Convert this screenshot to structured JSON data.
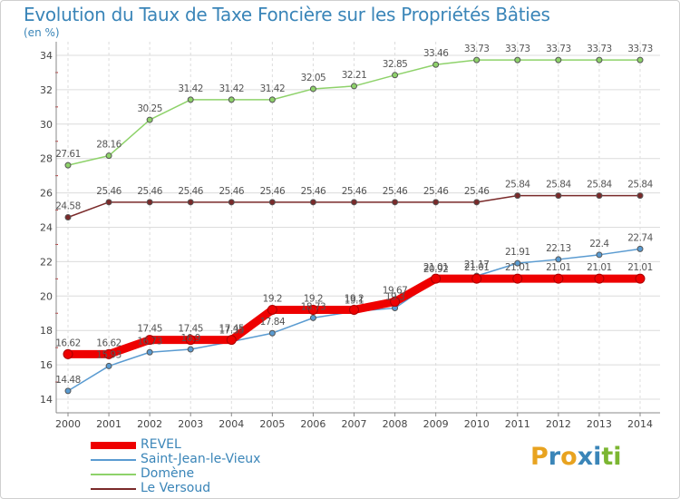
{
  "title": "Evolution du Taux de Taxe Foncière sur les Propriétés Bâties",
  "subtitle": "(en %)",
  "logo": {
    "text": "Proxiti",
    "letters": [
      "P",
      "r",
      "o",
      "x",
      "i",
      "t",
      "i"
    ],
    "colors": [
      "#e8a320",
      "#3a85b8",
      "#e8a320",
      "#3a85b8",
      "#3a85b8",
      "#7cb632",
      "#7cb632"
    ]
  },
  "chart_data": {
    "type": "line",
    "x": [
      "2000",
      "2001",
      "2002",
      "2003",
      "2004",
      "2005",
      "2006",
      "2007",
      "2008",
      "2009",
      "2010",
      "2011",
      "2012",
      "2013",
      "2014"
    ],
    "ylim": [
      14,
      34
    ],
    "yticks": [
      14,
      16,
      18,
      20,
      22,
      24,
      26,
      28,
      30,
      32,
      34
    ],
    "grid": true,
    "legend_position": "bottom-left",
    "series": [
      {
        "name": "REVEL",
        "color": "#ee0000",
        "values": [
          16.62,
          16.62,
          17.45,
          17.45,
          17.45,
          19.2,
          19.2,
          19.2,
          19.67,
          21.01,
          21.01,
          21.01,
          21.01,
          21.01,
          21.01
        ],
        "labels": [
          "16.62",
          "16.62",
          "17.45",
          "17.45",
          "17.45",
          "19.2",
          "19.2",
          "19.2",
          "19.67",
          "21.01",
          "21.01",
          "21.01",
          "21.01",
          "21.01",
          "21.01"
        ]
      },
      {
        "name": "Saint-Jean-le-Vieux",
        "color": "#5a9bd1",
        "values": [
          14.48,
          15.93,
          16.73,
          16.9,
          17.35,
          17.84,
          18.73,
          19.1,
          19.3,
          20.92,
          21.17,
          21.91,
          22.13,
          22.4,
          22.74
        ],
        "labels": [
          "14.48",
          "15.93",
          "16.73",
          "16.9",
          "17.35",
          "17.84",
          "18.73",
          "19.1",
          "19.3",
          "20.92",
          "21.17",
          "21.91",
          "22.13",
          "22.4",
          "22.74"
        ]
      },
      {
        "name": "Domène",
        "color": "#8ed26a",
        "values": [
          27.61,
          28.16,
          30.25,
          31.42,
          31.42,
          31.42,
          32.05,
          32.21,
          32.85,
          33.46,
          33.73,
          33.73,
          33.73,
          33.73,
          33.73
        ],
        "labels": [
          "27.61",
          "28.16",
          "30.25",
          "31.42",
          "31.42",
          "31.42",
          "32.05",
          "32.21",
          "32.85",
          "33.46",
          "33.73",
          "33.73",
          "33.73",
          "33.73",
          "33.73"
        ]
      },
      {
        "name": "Le Versoud",
        "color": "#7a2a2a",
        "values": [
          24.58,
          25.46,
          25.46,
          25.46,
          25.46,
          25.46,
          25.46,
          25.46,
          25.46,
          25.46,
          25.46,
          25.84,
          25.84,
          25.84,
          25.84
        ],
        "labels": [
          "24.58",
          "25.46",
          "25.46",
          "25.46",
          "25.46",
          "25.46",
          "25.46",
          "25.46",
          "25.46",
          "25.46",
          "25.46",
          "25.84",
          "25.84",
          "25.84",
          "25.84"
        ]
      }
    ],
    "legend": [
      "REVEL",
      "Saint-Jean-le-Vieux",
      "Domène",
      "Le Versoud"
    ]
  }
}
